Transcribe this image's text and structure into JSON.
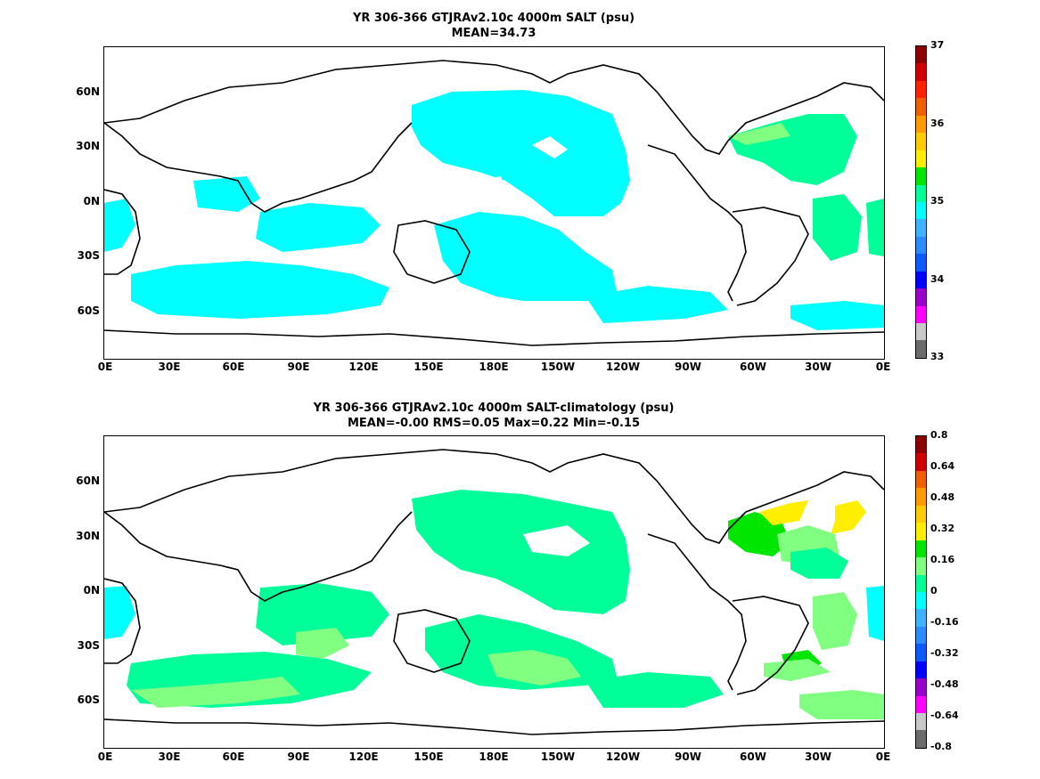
{
  "panels": [
    {
      "title_line1": "YR 306-366 GTJRAv2.10c 4000m SALT (psu)",
      "title_line2": "MEAN=34.73",
      "colorbar": {
        "colors": [
          "#6b6b6b",
          "#c8c8c8",
          "#ff00ff",
          "#9a00c8",
          "#0000ff",
          "#0a5aff",
          "#2a8cff",
          "#3cb4ff",
          "#00ffff",
          "#00ff99",
          "#00e600",
          "#ffee00",
          "#ffcc00",
          "#ff9a00",
          "#f06000",
          "#ff2200",
          "#d00000",
          "#8b0000"
        ],
        "labels": [
          "33",
          "34",
          "35",
          "36",
          "37"
        ],
        "label_fracs": [
          0,
          0.25,
          0.5,
          0.75,
          1.0
        ]
      }
    },
    {
      "title_line1": "YR 306-366 GTJRAv2.10c 4000m SALT-climatology (psu)",
      "title_line2": "MEAN=-0.00   RMS=0.05   Max=0.22   Min=-0.15",
      "colorbar": {
        "colors": [
          "#6b6b6b",
          "#c8c8c8",
          "#ff00ff",
          "#9a00c8",
          "#0000ff",
          "#0a5aff",
          "#2a8cff",
          "#3cb4ff",
          "#00ffff",
          "#00ff99",
          "#80ff80",
          "#00e600",
          "#ffee00",
          "#ffcc00",
          "#ff9a00",
          "#f06000",
          "#d00000",
          "#8b0000"
        ],
        "labels": [
          "0.8",
          "0.64",
          "0.48",
          "0.32",
          "0.16",
          "0",
          "-0.16",
          "-0.32",
          "-0.48",
          "-0.64",
          "-0.8"
        ],
        "label_fracs": [
          1.0,
          0.9,
          0.8,
          0.7,
          0.6,
          0.5,
          0.4,
          0.3,
          0.2,
          0.1,
          0.0
        ]
      }
    }
  ],
  "axes": {
    "lat_labels": [
      "60N",
      "30N",
      "0N",
      "30S",
      "60S"
    ],
    "lon_labels": [
      "0E",
      "30E",
      "60E",
      "90E",
      "120E",
      "150E",
      "180E",
      "150W",
      "120W",
      "90W",
      "60W",
      "30W",
      "0E"
    ]
  }
}
